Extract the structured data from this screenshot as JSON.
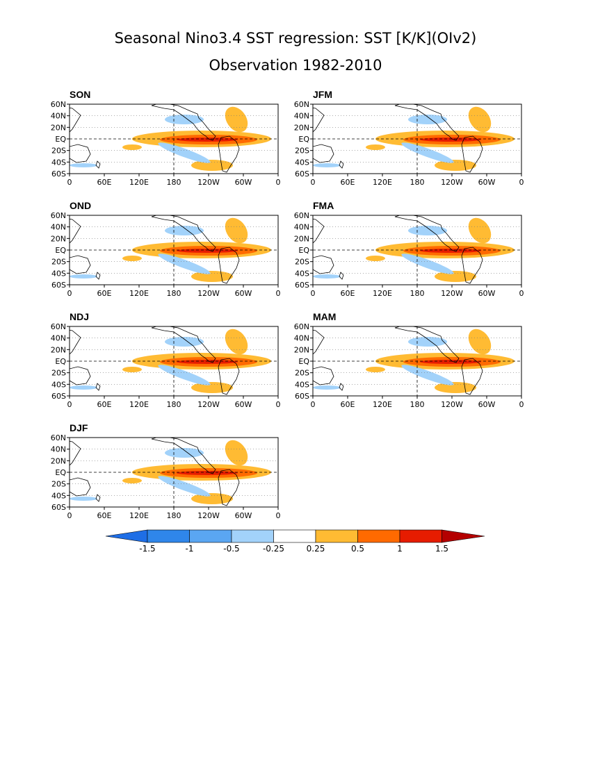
{
  "title": {
    "line1": "Seasonal Nino3.4 SST regression: SST [K/K](OIv2)",
    "line2": "Observation 1982-2010"
  },
  "axes": {
    "lon_labels": [
      "0",
      "60E",
      "120E",
      "180",
      "120W",
      "60W",
      "0"
    ],
    "lat_labels": [
      "60N",
      "40N",
      "20N",
      "EQ",
      "20S",
      "40S",
      "60S"
    ]
  },
  "panels": [
    {
      "name": "SON"
    },
    {
      "name": "JFM"
    },
    {
      "name": "OND"
    },
    {
      "name": "FMA"
    },
    {
      "name": "NDJ"
    },
    {
      "name": "MAM"
    },
    {
      "name": "DJF"
    }
  ],
  "colorbar": {
    "labels": [
      "-1.5",
      "-1",
      "-0.5",
      "-0.25",
      "0.25",
      "0.5",
      "1",
      "1.5"
    ],
    "colors": [
      "#1e6ee6",
      "#2f86ea",
      "#5aa6f2",
      "#a2d2fa",
      "#ffffff",
      "#ffbb33",
      "#ff6a00",
      "#e61c00",
      "#b40000"
    ]
  },
  "chart_data": {
    "type": "heatmap",
    "title": "Seasonal Nino3.4 SST regression: SST [K/K](OIv2)",
    "subtitle": "Observation 1982-2010",
    "variable": "SST regression [K/K]",
    "x_range": [
      0,
      360
    ],
    "y_range": [
      -60,
      60
    ],
    "contour_levels": [
      -1.5,
      -1,
      -0.5,
      -0.25,
      0.25,
      0.5,
      1,
      1.5
    ],
    "panels": [
      "SON",
      "JFM",
      "OND",
      "FMA",
      "NDJ",
      "MAM",
      "DJF"
    ]
  }
}
